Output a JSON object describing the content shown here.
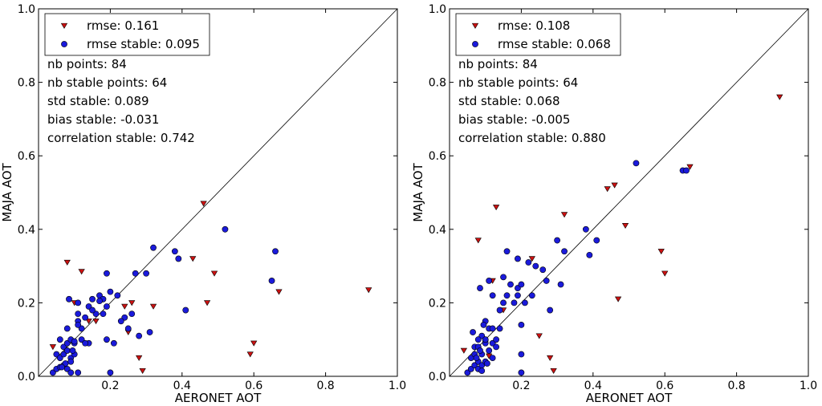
{
  "chart_data": [
    {
      "type": "scatter",
      "xlabel": "AERONET AOT",
      "ylabel": "MAJA AOT",
      "xlim": [
        0.0,
        1.0
      ],
      "ylim": [
        0.0,
        1.0
      ],
      "x_ticks": [
        "0.2",
        "0.4",
        "0.6",
        "0.8",
        "1.0"
      ],
      "y_ticks": [
        "0.0",
        "0.2",
        "0.4",
        "0.6",
        "0.8",
        "1.0"
      ],
      "identity_line": true,
      "grid": false,
      "legend_position": "top-left",
      "legend": [
        {
          "label": "rmse: 0.161",
          "marker": "triangle-down",
          "color": "#cc1111"
        },
        {
          "label": "rmse stable: 0.095",
          "marker": "circle",
          "color": "#1a1adb"
        }
      ],
      "stats": [
        "nb points: 84",
        "nb stable points: 64",
        "std stable: 0.089",
        "bias stable: -0.031",
        "correlation stable: 0.742"
      ],
      "series": [
        {
          "marker": "triangle-down",
          "color": "#cc1111",
          "points": [
            [
              0.04,
              0.08
            ],
            [
              0.08,
              0.31
            ],
            [
              0.1,
              0.2
            ],
            [
              0.12,
              0.285
            ],
            [
              0.14,
              0.15
            ],
            [
              0.16,
              0.15
            ],
            [
              0.24,
              0.19
            ],
            [
              0.25,
              0.12
            ],
            [
              0.26,
              0.2
            ],
            [
              0.28,
              0.05
            ],
            [
              0.29,
              0.015
            ],
            [
              0.32,
              0.19
            ],
            [
              0.43,
              0.32
            ],
            [
              0.46,
              0.47
            ],
            [
              0.47,
              0.2
            ],
            [
              0.49,
              0.28
            ],
            [
              0.59,
              0.06
            ],
            [
              0.6,
              0.09
            ],
            [
              0.67,
              0.23
            ],
            [
              0.92,
              0.235
            ]
          ]
        },
        {
          "marker": "circle",
          "color": "#1a1adb",
          "points": [
            [
              0.04,
              0.01
            ],
            [
              0.05,
              0.02
            ],
            [
              0.05,
              0.06
            ],
            [
              0.06,
              0.025
            ],
            [
              0.06,
              0.05
            ],
            [
              0.06,
              0.1
            ],
            [
              0.07,
              0.03
            ],
            [
              0.07,
              0.06
            ],
            [
              0.07,
              0.08
            ],
            [
              0.08,
              0.02
            ],
            [
              0.08,
              0.07
            ],
            [
              0.08,
              0.09
            ],
            [
              0.08,
              0.13
            ],
            [
              0.085,
              0.21
            ],
            [
              0.09,
              0.01
            ],
            [
              0.09,
              0.05
            ],
            [
              0.09,
              0.1
            ],
            [
              0.1,
              0.06
            ],
            [
              0.1,
              0.09
            ],
            [
              0.11,
              0.01
            ],
            [
              0.11,
              0.15
            ],
            [
              0.11,
              0.17
            ],
            [
              0.11,
              0.2
            ],
            [
              0.12,
              0.1
            ],
            [
              0.12,
              0.13
            ],
            [
              0.13,
              0.16
            ],
            [
              0.14,
              0.09
            ],
            [
              0.14,
              0.19
            ],
            [
              0.15,
              0.21
            ],
            [
              0.16,
              0.17
            ],
            [
              0.17,
              0.22
            ],
            [
              0.18,
              0.21
            ],
            [
              0.18,
              0.17
            ],
            [
              0.19,
              0.1
            ],
            [
              0.19,
              0.19
            ],
            [
              0.19,
              0.28
            ],
            [
              0.2,
              0.01
            ],
            [
              0.2,
              0.23
            ],
            [
              0.21,
              0.09
            ],
            [
              0.24,
              0.16
            ],
            [
              0.25,
              0.13
            ],
            [
              0.26,
              0.17
            ],
            [
              0.27,
              0.28
            ],
            [
              0.28,
              0.11
            ],
            [
              0.3,
              0.28
            ],
            [
              0.31,
              0.12
            ],
            [
              0.32,
              0.35
            ],
            [
              0.38,
              0.34
            ],
            [
              0.39,
              0.32
            ],
            [
              0.41,
              0.18
            ],
            [
              0.52,
              0.4
            ],
            [
              0.65,
              0.26
            ],
            [
              0.66,
              0.34
            ],
            [
              0.22,
              0.22
            ],
            [
              0.17,
              0.205
            ],
            [
              0.1,
              0.095
            ],
            [
              0.075,
              0.035
            ],
            [
              0.065,
              0.025
            ],
            [
              0.095,
              0.07
            ],
            [
              0.13,
              0.09
            ],
            [
              0.23,
              0.15
            ],
            [
              0.11,
              0.14
            ],
            [
              0.15,
              0.18
            ],
            [
              0.09,
              0.04
            ]
          ]
        }
      ]
    },
    {
      "type": "scatter",
      "xlabel": "AERONET AOT",
      "ylabel": "MAJA AOT",
      "xlim": [
        0.0,
        1.0
      ],
      "ylim": [
        0.0,
        1.0
      ],
      "x_ticks": [
        "0.2",
        "0.4",
        "0.6",
        "0.8",
        "1.0"
      ],
      "y_ticks": [
        "0.0",
        "0.2",
        "0.4",
        "0.6",
        "0.8",
        "1.0"
      ],
      "identity_line": true,
      "grid": false,
      "legend_position": "top-left",
      "legend": [
        {
          "label": "rmse: 0.108",
          "marker": "triangle-down",
          "color": "#cc1111"
        },
        {
          "label": "rmse stable: 0.068",
          "marker": "circle",
          "color": "#1a1adb"
        }
      ],
      "stats": [
        "nb points: 84",
        "nb stable points: 64",
        "std stable: 0.068",
        "bias stable: -0.005",
        "correlation stable: 0.880"
      ],
      "series": [
        {
          "marker": "triangle-down",
          "color": "#cc1111",
          "points": [
            [
              0.04,
              0.07
            ],
            [
              0.08,
              0.37
            ],
            [
              0.12,
              0.26
            ],
            [
              0.13,
              0.46
            ],
            [
              0.15,
              0.18
            ],
            [
              0.23,
              0.32
            ],
            [
              0.25,
              0.11
            ],
            [
              0.28,
              0.05
            ],
            [
              0.29,
              0.015
            ],
            [
              0.32,
              0.44
            ],
            [
              0.44,
              0.51
            ],
            [
              0.46,
              0.52
            ],
            [
              0.47,
              0.21
            ],
            [
              0.49,
              0.41
            ],
            [
              0.59,
              0.34
            ],
            [
              0.6,
              0.28
            ],
            [
              0.67,
              0.57
            ],
            [
              0.92,
              0.76
            ],
            [
              0.11,
              0.055
            ],
            [
              0.1,
              0.09
            ]
          ]
        },
        {
          "marker": "circle",
          "color": "#1a1adb",
          "points": [
            [
              0.05,
              0.01
            ],
            [
              0.06,
              0.02
            ],
            [
              0.06,
              0.05
            ],
            [
              0.065,
              0.12
            ],
            [
              0.07,
              0.03
            ],
            [
              0.07,
              0.06
            ],
            [
              0.07,
              0.08
            ],
            [
              0.08,
              0.02
            ],
            [
              0.08,
              0.04
            ],
            [
              0.08,
              0.08
            ],
            [
              0.085,
              0.24
            ],
            [
              0.09,
              0.03
            ],
            [
              0.09,
              0.06
            ],
            [
              0.09,
              0.11
            ],
            [
              0.1,
              0.04
            ],
            [
              0.1,
              0.09
            ],
            [
              0.1,
              0.15
            ],
            [
              0.11,
              0.07
            ],
            [
              0.11,
              0.13
            ],
            [
              0.11,
              0.26
            ],
            [
              0.12,
              0.09
            ],
            [
              0.12,
              0.13
            ],
            [
              0.12,
              0.22
            ],
            [
              0.13,
              0.1
            ],
            [
              0.14,
              0.13
            ],
            [
              0.15,
              0.2
            ],
            [
              0.15,
              0.27
            ],
            [
              0.16,
              0.34
            ],
            [
              0.18,
              0.2
            ],
            [
              0.19,
              0.22
            ],
            [
              0.19,
              0.24
            ],
            [
              0.19,
              0.32
            ],
            [
              0.2,
              0.01
            ],
            [
              0.2,
              0.14
            ],
            [
              0.2,
              0.25
            ],
            [
              0.2,
              0.06
            ],
            [
              0.21,
              0.2
            ],
            [
              0.22,
              0.31
            ],
            [
              0.23,
              0.22
            ],
            [
              0.24,
              0.3
            ],
            [
              0.26,
              0.29
            ],
            [
              0.27,
              0.26
            ],
            [
              0.28,
              0.18
            ],
            [
              0.3,
              0.37
            ],
            [
              0.31,
              0.25
            ],
            [
              0.32,
              0.34
            ],
            [
              0.38,
              0.4
            ],
            [
              0.39,
              0.33
            ],
            [
              0.41,
              0.37
            ],
            [
              0.52,
              0.58
            ],
            [
              0.65,
              0.56
            ],
            [
              0.66,
              0.56
            ],
            [
              0.08,
              0.1
            ],
            [
              0.09,
              0.015
            ],
            [
              0.075,
              0.05
            ],
            [
              0.1,
              0.1
            ],
            [
              0.13,
              0.08
            ],
            [
              0.16,
              0.22
            ],
            [
              0.17,
              0.25
            ],
            [
              0.14,
              0.18
            ],
            [
              0.12,
              0.05
            ],
            [
              0.095,
              0.14
            ],
            [
              0.105,
              0.035
            ],
            [
              0.085,
              0.07
            ]
          ]
        }
      ]
    }
  ]
}
